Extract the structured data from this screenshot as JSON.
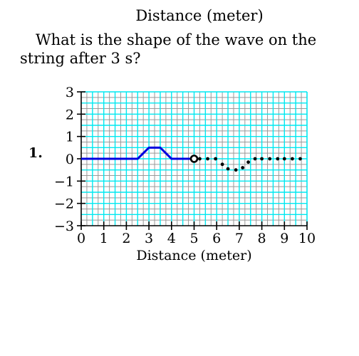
{
  "previous_chart": {
    "xlabel": "Distance (meter)"
  },
  "question": {
    "text": "What is the shape of the wave on the string after 3 s?"
  },
  "problem": {
    "number": "1."
  },
  "chart_data": {
    "type": "line",
    "title": "",
    "xlabel": "Distance (meter)",
    "ylabel": "",
    "xlim": [
      0,
      10
    ],
    "ylim": [
      -3,
      3
    ],
    "x_ticks": [
      "0",
      "1",
      "2",
      "3",
      "4",
      "5",
      "6",
      "7",
      "8",
      "9",
      "10"
    ],
    "y_ticks": [
      "3",
      "2",
      "1",
      "0",
      "−1",
      "−2",
      "−3"
    ],
    "y_tick_values": [
      3,
      2,
      1,
      0,
      -1,
      -2,
      -3
    ],
    "grid": true,
    "series": [
      {
        "style": "solid",
        "color": "#0000e0",
        "points": [
          [
            0,
            0
          ],
          [
            2.5,
            0
          ],
          [
            3,
            0.5
          ],
          [
            3.5,
            0.5
          ],
          [
            4,
            0
          ],
          [
            5,
            0
          ]
        ]
      },
      {
        "style": "dotted",
        "color": "#000000",
        "points": [
          [
            5.25,
            0
          ],
          [
            5.6,
            0
          ],
          [
            5.95,
            0
          ],
          [
            6.25,
            -0.25
          ],
          [
            6.5,
            -0.45
          ],
          [
            6.85,
            -0.5
          ],
          [
            7.15,
            -0.4
          ],
          [
            7.4,
            -0.15
          ],
          [
            7.7,
            0
          ],
          [
            8.0,
            0
          ],
          [
            8.35,
            0
          ],
          [
            8.7,
            0
          ],
          [
            9.0,
            0
          ],
          [
            9.35,
            0
          ],
          [
            9.7,
            0
          ]
        ]
      }
    ],
    "marker": {
      "x": 5,
      "y": 0,
      "shape": "open-circle"
    },
    "colors": {
      "major_grid": "#00e8f0",
      "minor_grid": "#999999"
    }
  }
}
